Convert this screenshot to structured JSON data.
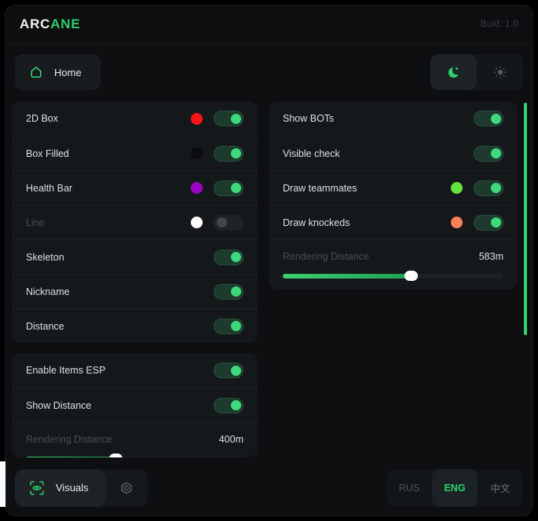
{
  "header": {
    "logo_primary": "ARC",
    "logo_accent": "ANE",
    "build": "Buid: 1.0"
  },
  "nav": {
    "home_label": "Home"
  },
  "theme": {
    "selected": "dark",
    "icons": [
      "moon-icon",
      "sun-icon"
    ]
  },
  "colors": {
    "accent": "#2fd06c",
    "toggle_knob": "#3ed97c",
    "scrollbar": "#35d46f"
  },
  "panels": {
    "esp": {
      "rows": [
        {
          "label": "2D Box",
          "toggle": "on",
          "dot": "#fb1414"
        },
        {
          "label": "Box Filled",
          "toggle": "on",
          "dot": "#0b0c0e"
        },
        {
          "label": "Health Bar",
          "toggle": "on",
          "dot": "#9c05c2"
        },
        {
          "label": "Line",
          "toggle": "off",
          "dot": "#ffffff",
          "dim": true
        },
        {
          "label": "Skeleton",
          "toggle": "on"
        },
        {
          "label": "Nickname",
          "toggle": "on"
        },
        {
          "label": "Distance",
          "toggle": "on"
        }
      ]
    },
    "items": {
      "rows": [
        {
          "label": "Enable Items ESP",
          "toggle": "on"
        },
        {
          "label": "Show Distance",
          "toggle": "on"
        },
        {
          "type": "slider",
          "label": "Rendering Distance",
          "value": "400m",
          "fill": 0.41,
          "dim": true
        }
      ]
    },
    "world": {
      "rows": [
        {
          "label": "Show BOTs",
          "toggle": "on"
        },
        {
          "label": "Visible check",
          "toggle": "on"
        },
        {
          "label": "Draw teammates",
          "toggle": "on",
          "dot": "#63e43c"
        },
        {
          "label": "Draw knockeds",
          "toggle": "on",
          "dot": "#f8805a"
        },
        {
          "type": "slider",
          "label": "Rendering Distance",
          "value": "583m",
          "fill": 0.58,
          "dim": true
        }
      ]
    }
  },
  "footer": {
    "visuals_label": "Visuals",
    "languages": [
      {
        "label": "RUS",
        "active": false
      },
      {
        "label": "ENG",
        "active": true
      },
      {
        "label": "中文",
        "active": false,
        "zh": true
      }
    ]
  }
}
